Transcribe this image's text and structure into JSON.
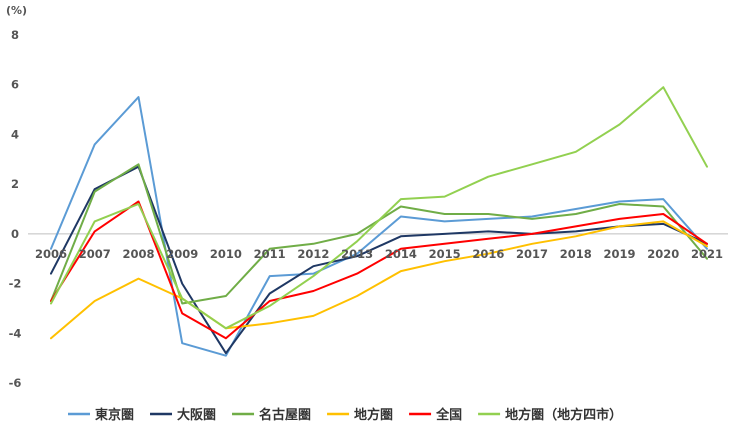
{
  "chart_data": {
    "type": "line",
    "unit_label": "(%)",
    "categories": [
      "2006",
      "2007",
      "2008",
      "2009",
      "2010",
      "2011",
      "2012",
      "2013",
      "2014",
      "2015",
      "2016",
      "2017",
      "2018",
      "2019",
      "2020",
      "2021"
    ],
    "ylim": [
      -6,
      8
    ],
    "yticks": [
      8,
      6,
      4,
      2,
      0,
      -2,
      -4,
      -6
    ],
    "series": [
      {
        "name": "東京圏",
        "color": "#5b9bd5",
        "values": [
          -0.6,
          3.6,
          5.5,
          -4.4,
          -4.9,
          -1.7,
          -1.6,
          -0.8,
          0.7,
          0.5,
          0.6,
          0.7,
          1.0,
          1.3,
          1.4,
          -0.6
        ]
      },
      {
        "name": "大阪圏",
        "color": "#1f3864",
        "values": [
          -1.6,
          1.8,
          2.7,
          -2.0,
          -4.8,
          -2.4,
          -1.3,
          -0.9,
          -0.1,
          0.0,
          0.1,
          0.0,
          0.1,
          0.3,
          0.4,
          -0.4
        ]
      },
      {
        "name": "名古屋圏",
        "color": "#70ad47",
        "values": [
          -2.7,
          1.7,
          2.8,
          -2.8,
          -2.5,
          -0.6,
          -0.4,
          0.0,
          1.1,
          0.8,
          0.8,
          0.6,
          0.8,
          1.2,
          1.1,
          -1.0
        ]
      },
      {
        "name": "地方圏",
        "color": "#ffc000",
        "values": [
          -4.2,
          -2.7,
          -1.8,
          -2.6,
          -3.8,
          -3.6,
          -3.3,
          -2.5,
          -1.5,
          -1.1,
          -0.8,
          -0.4,
          -0.1,
          0.3,
          0.5,
          -0.5
        ]
      },
      {
        "name": "全国",
        "color": "#ff0000",
        "values": [
          -2.7,
          0.1,
          1.3,
          -3.2,
          -4.2,
          -2.7,
          -2.3,
          -1.6,
          -0.6,
          -0.4,
          -0.2,
          0.0,
          0.3,
          0.6,
          0.8,
          -0.4
        ]
      },
      {
        "name": "地方圏（地方四市）",
        "color": "#92d050",
        "values": [
          -2.8,
          0.5,
          1.2,
          -2.6,
          -3.8,
          -2.9,
          -1.7,
          -0.3,
          1.4,
          1.5,
          2.3,
          2.8,
          3.3,
          4.4,
          5.9,
          2.7
        ]
      }
    ],
    "legend_position": "bottom",
    "grid": false
  }
}
